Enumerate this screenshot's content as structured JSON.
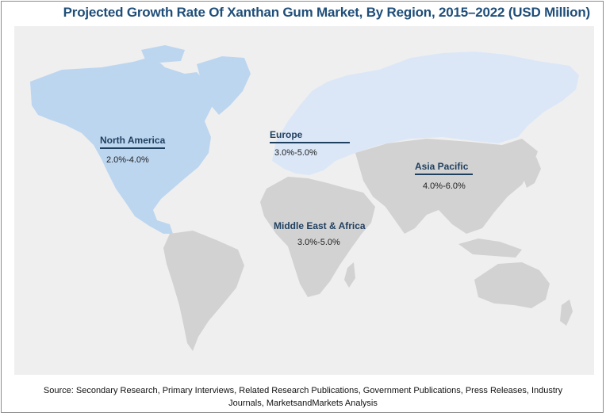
{
  "title": "Projected Growth Rate Of Xanthan Gum Market, By Region, 2015–2022 (USD Million)",
  "regions": [
    {
      "name": "North America",
      "rate": "2.0%-4.0%",
      "color": "#bcd6f0"
    },
    {
      "name": "Europe",
      "rate": "3.0%-5.0%",
      "color": "#dbe7f7"
    },
    {
      "name": "Asia Pacific",
      "rate": "4.0%-6.0%",
      "color": "#d2d2d2"
    },
    {
      "name": "Middle East & Africa",
      "rate": "3.0%-5.0%",
      "color": "#d2d2d2"
    }
  ],
  "source": {
    "line1": "Source: Secondary Research, Primary Interviews, Related Research Publications, Government Publications, Press Releases, Industry",
    "line2": "Journals, MarketsandMarkets Analysis"
  },
  "colors": {
    "title": "#1f4e79",
    "background_panel": "#efefef",
    "label_underline": "#1f3f5f",
    "south_america": "#d2d2d2"
  }
}
